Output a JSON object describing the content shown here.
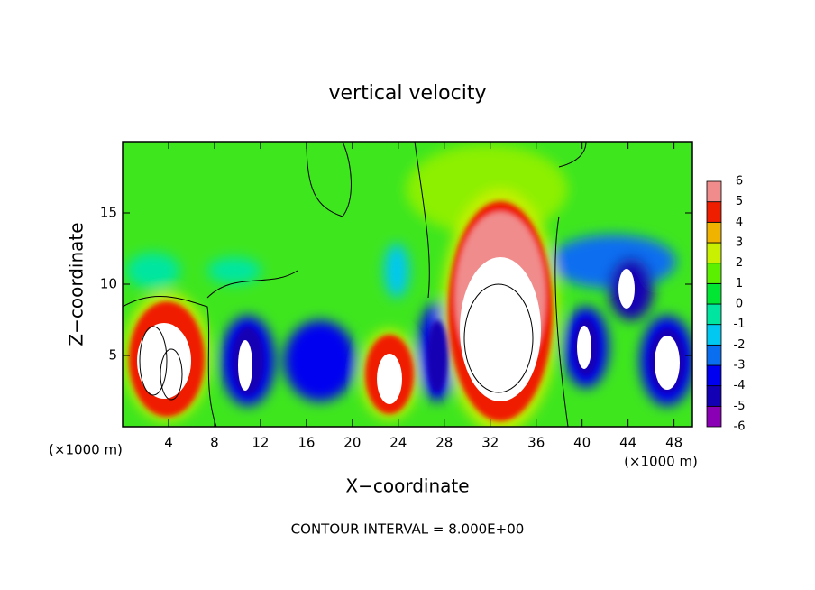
{
  "chart_data": {
    "type": "contourf",
    "title": "vertical velocity",
    "xlabel": "X−coordinate",
    "ylabel": "Z−coordinate",
    "xunit_left": "(×1000 m)",
    "xunit_right": "(×1000 m)",
    "note": "CONTOUR INTERVAL = 8.000E+00",
    "xlim": [
      0,
      49.6
    ],
    "xticks": [
      4,
      8,
      12,
      16,
      20,
      24,
      28,
      32,
      36,
      40,
      44,
      48
    ],
    "ylim": [
      0,
      20
    ],
    "yticks": [
      5,
      10,
      15
    ],
    "levels": [
      -6,
      -5,
      -4,
      -3,
      -2,
      -1,
      0,
      1,
      2,
      3,
      4,
      5,
      6
    ],
    "level_colors": [
      "#8a00b4",
      "#1400b4",
      "#0000f0",
      "#0a6ef0",
      "#00c8f0",
      "#00e6a0",
      "#00e632",
      "#5af000",
      "#c8f000",
      "#f0b400",
      "#f01e00",
      "#f08c8c"
    ]
  }
}
